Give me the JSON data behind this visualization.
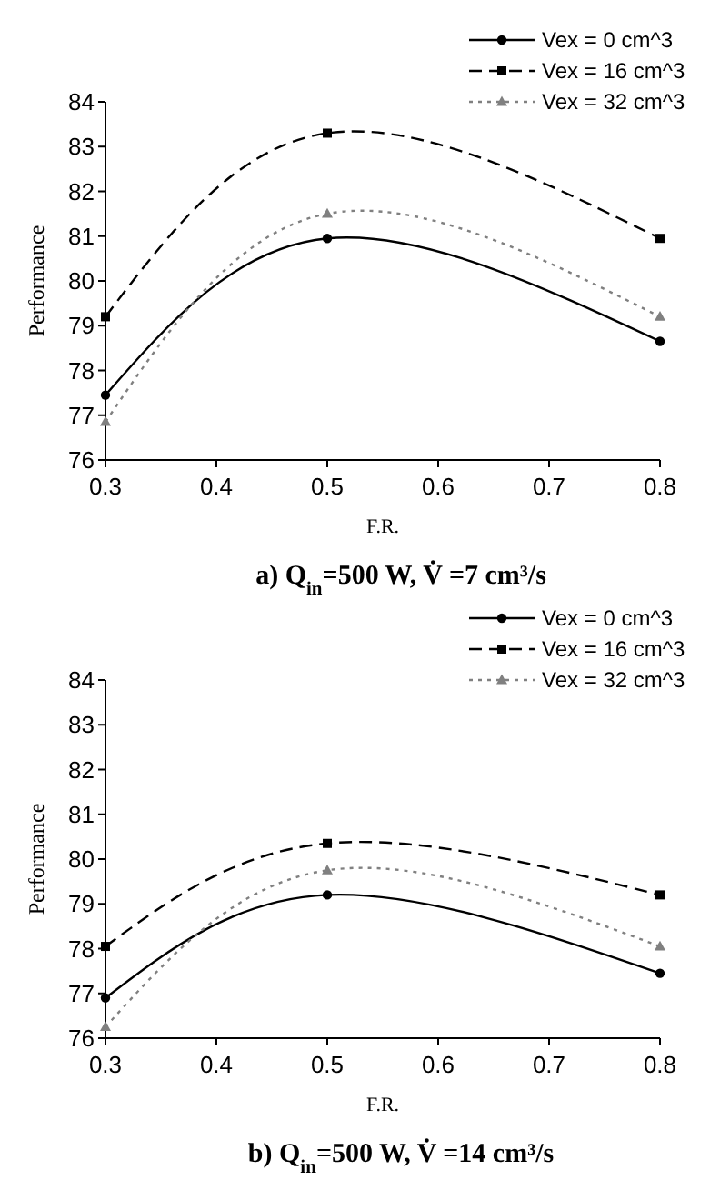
{
  "chart_data": [
    {
      "type": "line",
      "title": "a) Q$_{in}$=500 W,  V̇ =7 cm³/s",
      "xlabel": "F.R.",
      "ylabel": "Performance",
      "x": [
        0.3,
        0.5,
        0.8
      ],
      "xlim": [
        0.3,
        0.8
      ],
      "xticks": [
        0.3,
        0.4,
        0.5,
        0.6,
        0.7,
        0.8
      ],
      "ylim": [
        76,
        84
      ],
      "yticks": [
        76,
        77,
        78,
        79,
        80,
        81,
        82,
        83,
        84
      ],
      "legend": "top right",
      "series": [
        {
          "name": "Vex = 0   cm^3",
          "color": "#000000",
          "line_style": "solid",
          "marker": "circle",
          "values": [
            77.45,
            80.95,
            78.65
          ]
        },
        {
          "name": "Vex = 16 cm^3",
          "color": "#000000",
          "line_style": "dashed",
          "marker": "square",
          "values": [
            79.2,
            83.3,
            80.95
          ]
        },
        {
          "name": "Vex = 32  cm^3",
          "color": "#808080",
          "line_style": "dotted",
          "marker": "triangle",
          "values": [
            76.85,
            81.5,
            79.2
          ]
        }
      ]
    },
    {
      "type": "line",
      "title": "b) Q$_{in}$=500 W,  V̇ =14 cm³/s",
      "xlabel": "F.R.",
      "ylabel": "Performance",
      "x": [
        0.3,
        0.5,
        0.8
      ],
      "xlim": [
        0.3,
        0.8
      ],
      "xticks": [
        0.3,
        0.4,
        0.5,
        0.6,
        0.7,
        0.8
      ],
      "ylim": [
        76,
        84
      ],
      "yticks": [
        76,
        77,
        78,
        79,
        80,
        81,
        82,
        83,
        84
      ],
      "legend": "top right",
      "series": [
        {
          "name": "Vex = 0   cm^3",
          "color": "#000000",
          "line_style": "solid",
          "marker": "circle",
          "values": [
            76.9,
            79.2,
            77.45
          ]
        },
        {
          "name": "Vex = 16 cm^3",
          "color": "#000000",
          "line_style": "dashed",
          "marker": "square",
          "values": [
            78.05,
            80.35,
            79.2
          ]
        },
        {
          "name": "Vex = 32  cm^3",
          "color": "#808080",
          "line_style": "dotted",
          "marker": "triangle",
          "values": [
            76.25,
            79.75,
            78.05
          ]
        }
      ]
    }
  ]
}
